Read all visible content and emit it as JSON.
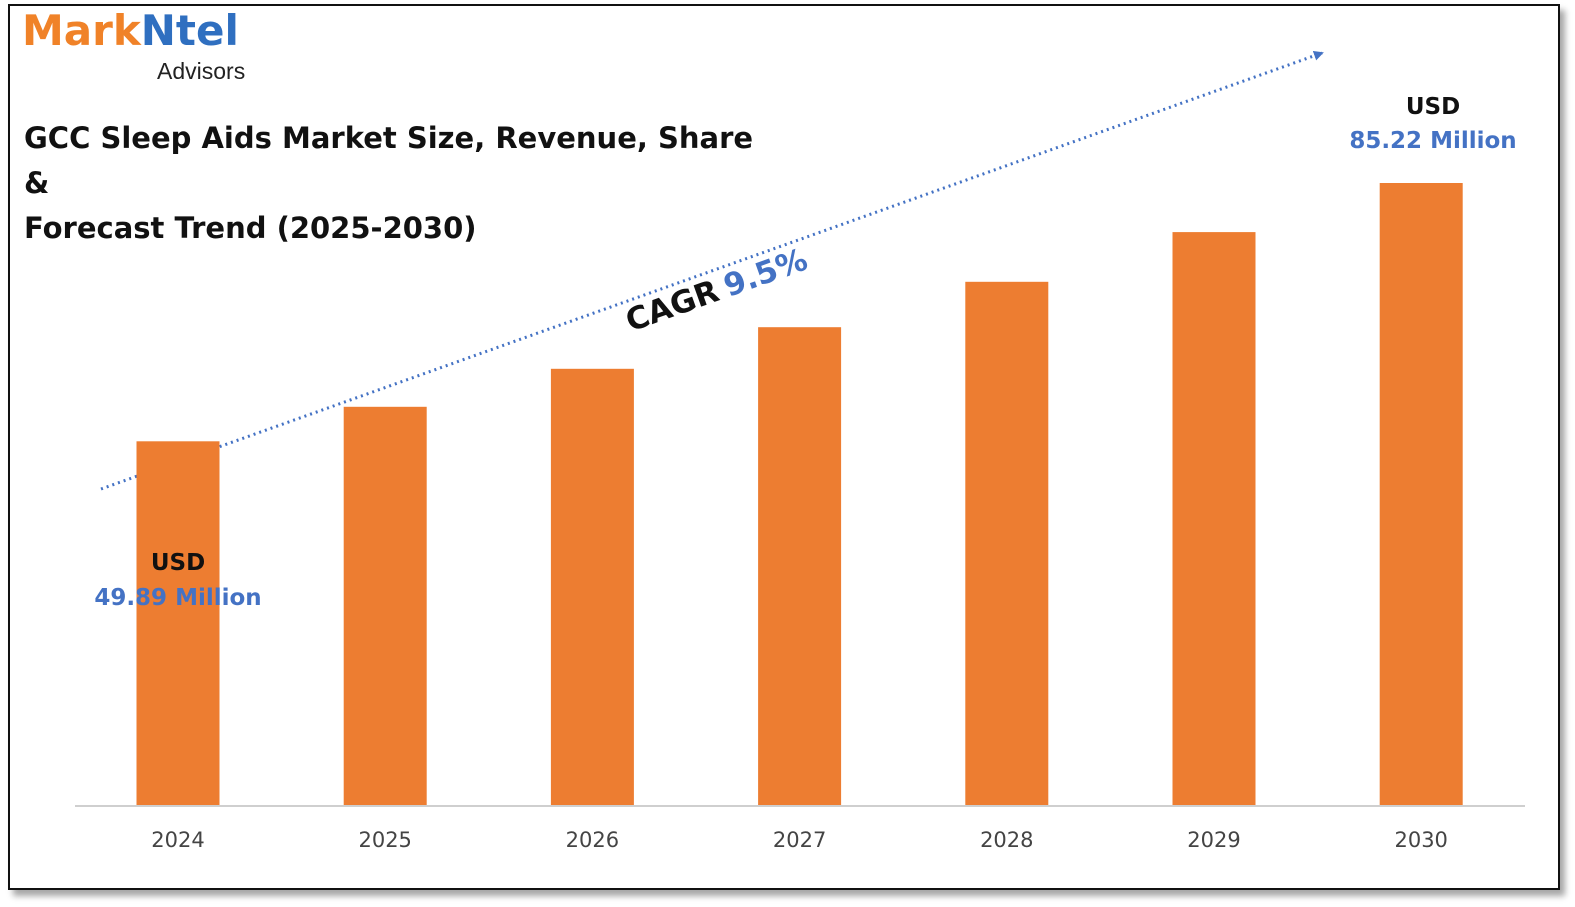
{
  "brand": {
    "logo_part1": "Mark",
    "logo_part2": "Ntel",
    "logo_sub": "Advisors",
    "color_orange": "#f08228",
    "color_blue": "#2f6fc0"
  },
  "header": {
    "title_line1": "GCC Sleep Aids Market Size, Revenue, Share &",
    "title_line2": "Forecast Trend (2025-2030)"
  },
  "annotations": {
    "start": {
      "currency": "USD",
      "value": "49.89 Million"
    },
    "end": {
      "currency": "USD",
      "value": "85.22 Million"
    },
    "cagr_label": "CAGR",
    "cagr_value": "9.5%"
  },
  "chart_data": {
    "type": "bar",
    "categories": [
      "2024",
      "2025",
      "2026",
      "2027",
      "2028",
      "2029",
      "2030"
    ],
    "values": [
      49.89,
      54.6,
      59.8,
      65.5,
      71.7,
      78.5,
      85.22
    ],
    "title": "GCC Sleep Aids Market Size, Revenue, Share & Forecast Trend (2025-2030)",
    "xlabel": "",
    "ylabel": "",
    "ylim": [
      0,
      90
    ],
    "grid": false,
    "legend": "none",
    "bar_color": "#ed7d31",
    "value_color": "#4472c4"
  }
}
